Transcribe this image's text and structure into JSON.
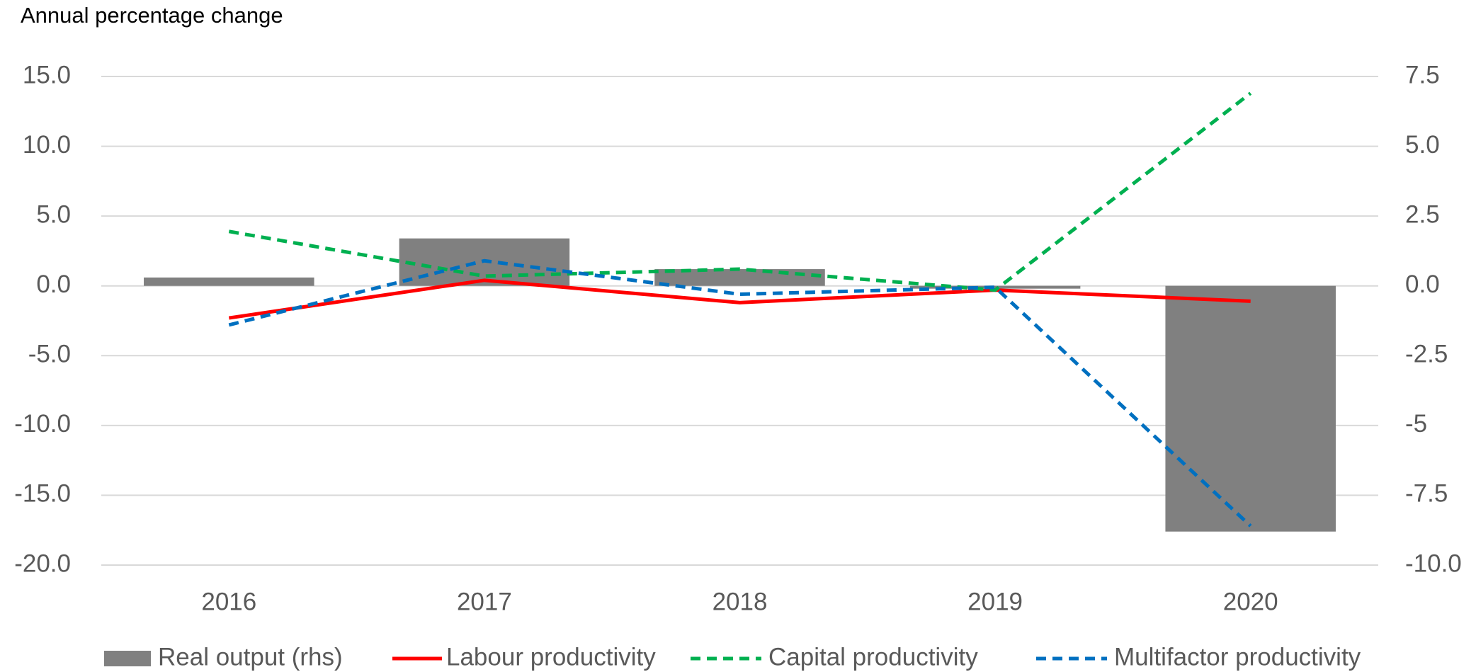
{
  "chart_data": {
    "type": "bar_line",
    "title": "Annual percentage change",
    "categories": [
      "2016",
      "2017",
      "2018",
      "2019",
      "2020"
    ],
    "series": [
      {
        "name": "Real output (rhs)",
        "type": "bar",
        "axis": "y2",
        "color": "#808080",
        "values": [
          0.3,
          1.7,
          0.6,
          -0.1,
          -8.8
        ]
      },
      {
        "name": "Labour productivity",
        "type": "line",
        "color": "#ff0000",
        "style": "solid",
        "values": [
          -2.3,
          0.4,
          -1.2,
          -0.3,
          -1.1
        ]
      },
      {
        "name": "Capital productivity",
        "type": "line",
        "color": "#00b050",
        "style": "dashed",
        "values": [
          3.9,
          0.7,
          1.2,
          -0.3,
          13.8
        ]
      },
      {
        "name": "Multifactor productivity",
        "type": "line",
        "color": "#0070c0",
        "style": "dashed",
        "values": [
          -2.8,
          1.8,
          -0.6,
          -0.1,
          -17.2
        ]
      }
    ],
    "ylim": [
      -20,
      15
    ],
    "yticks": [
      {
        "value": -20,
        "label": "-20.0"
      },
      {
        "value": -15,
        "label": "-15.0"
      },
      {
        "value": -10,
        "label": "-10.0"
      },
      {
        "value": -5,
        "label": "-5.0"
      },
      {
        "value": 0,
        "label": "0.0"
      },
      {
        "value": 5,
        "label": "5.0"
      },
      {
        "value": 10,
        "label": "10.0"
      },
      {
        "value": 15,
        "label": "15.0"
      }
    ],
    "y2lim": [
      -10,
      7.5
    ],
    "y2ticks": [
      {
        "value": -10,
        "label": "-10.0"
      },
      -7.5,
      -5,
      -2.5,
      {
        "value": 0,
        "label": "0.0"
      },
      2.5,
      {
        "value": 5,
        "label": "5.0"
      },
      7.5
    ],
    "grid": true,
    "legend": "bottom"
  }
}
